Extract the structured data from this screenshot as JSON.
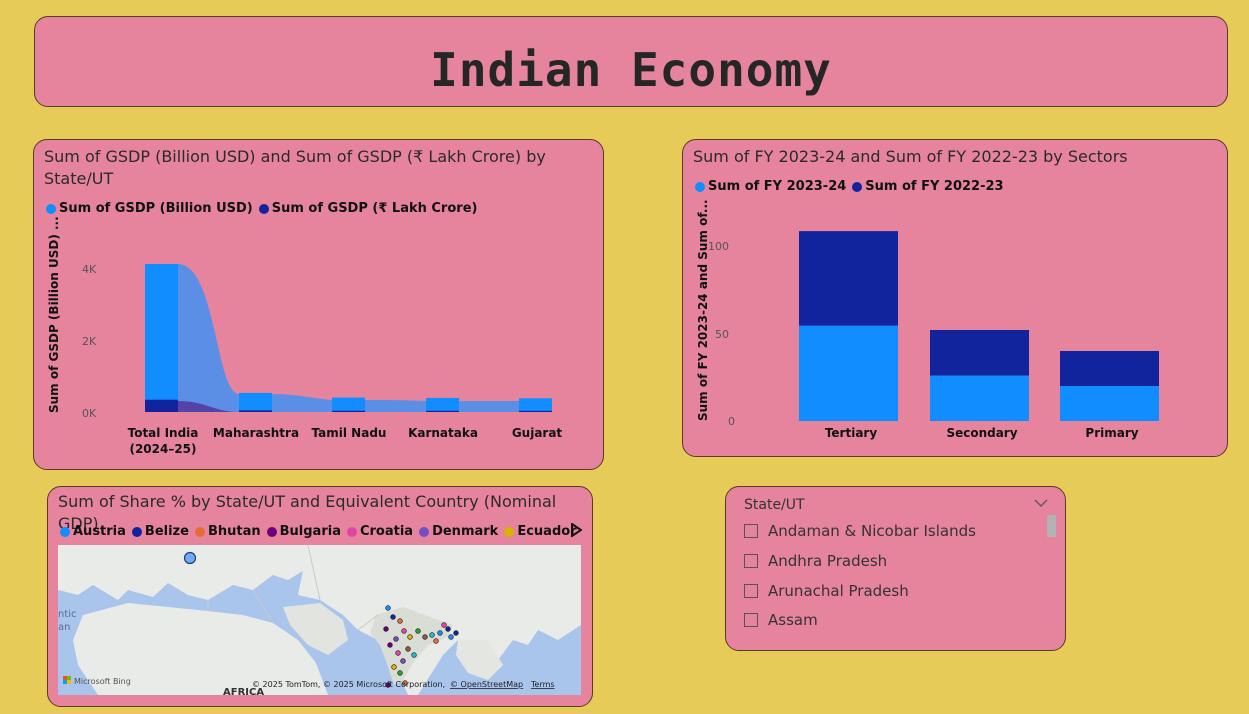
{
  "page_title": "Indian Economy",
  "gsdp_chart": {
    "title_line1": "Sum of GSDP (Billion USD) and Sum of GSDP (₹ Lakh Crore) by",
    "title_line2": "State/UT",
    "legend": [
      "Sum of GSDP (Billion USD)",
      "Sum of GSDP (₹ Lakh Crore)"
    ],
    "ylabel": "Sum of GSDP (Billion USD) ...",
    "ticks": [
      "4K",
      "2K",
      "0K"
    ],
    "cat1_line1": "Total India",
    "cat1_line2": "(2024–25)",
    "cats": [
      "Maharashtra",
      "Tamil Nadu",
      "Karnataka",
      "Gujarat"
    ]
  },
  "sector_chart": {
    "title": "Sum of FY 2023-24 and Sum of FY 2022-23 by Sectors",
    "legend": [
      "Sum of FY 2023-24",
      "Sum of FY 2022-23"
    ],
    "ylabel": "Sum of FY 2023-24 and Sum of...",
    "ticks": [
      "100",
      "50",
      "0"
    ],
    "categories": [
      "Tertiary",
      "Secondary",
      "Primary"
    ]
  },
  "map_visual": {
    "title": "Sum of Share % by State/UT and Equivalent Country (Nominal GDP)",
    "legend": [
      "Austria",
      "Belize",
      "Bhutan",
      "Bulgaria",
      "Croatia",
      "Denmark",
      "Ecuador"
    ],
    "legend_colors": [
      "#118DFF",
      "#12239E",
      "#E66C37",
      "#6B007B",
      "#E044A7",
      "#744EC2",
      "#D9B300"
    ],
    "ocean_text1": "ntic",
    "ocean_text2": "an",
    "africa": "AFRICA",
    "bing": "Microsoft Bing",
    "copyright": "© 2025 TomTom, © 2025 Microsoft Corporation,",
    "osm": "© OpenStreetMap",
    "terms": "Terms"
  },
  "slicer": {
    "title": "State/UT",
    "items": [
      "Andaman & Nicobar Islands",
      "Andhra Pradesh",
      "Arunachal Pradesh",
      "Assam"
    ]
  },
  "colors": {
    "series1": "#118DFF",
    "series2": "#12239E",
    "background": "#E6CB58",
    "card": "#E6849E"
  },
  "chart_data": [
    {
      "type": "bar",
      "categories": [
        "Total India (2024–25)",
        "Maharashtra",
        "Tamil Nadu",
        "Karnataka",
        "Gujarat"
      ],
      "series": [
        {
          "name": "Sum of GSDP (Billion USD)",
          "values": [
            4100,
            530,
            400,
            390,
            380
          ]
        },
        {
          "name": "Sum of GSDP (₹ Lakh Crore)",
          "values": [
            340,
            45,
            34,
            33,
            32
          ]
        }
      ],
      "ylabel": "Sum of GSDP (Billion USD) ...",
      "ylim": [
        0,
        4500
      ],
      "grid": false,
      "legend": "top-left"
    },
    {
      "type": "bar",
      "stacked": true,
      "categories": [
        "Tertiary",
        "Secondary",
        "Primary"
      ],
      "series": [
        {
          "name": "Sum of FY 2023-24",
          "values": [
            54.5,
            26,
            20
          ]
        },
        {
          "name": "Sum of FY 2022-23",
          "values": [
            54,
            26,
            20
          ]
        }
      ],
      "ylabel": "Sum of FY 2023-24 and Sum of...",
      "ylim": [
        0,
        115
      ],
      "grid": false,
      "legend": "top-left"
    }
  ]
}
